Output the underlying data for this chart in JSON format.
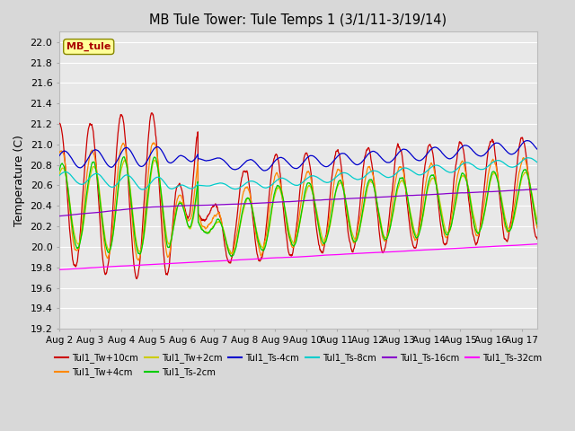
{
  "title": "MB Tule Tower: Tule Temps 1 (3/1/11-3/19/14)",
  "ylabel": "Temperature (C)",
  "ylim": [
    19.2,
    22.1
  ],
  "yticks": [
    19.2,
    19.4,
    19.6,
    19.8,
    20.0,
    20.2,
    20.4,
    20.6,
    20.8,
    21.0,
    21.2,
    21.4,
    21.6,
    21.8,
    22.0
  ],
  "xlim_days": [
    0,
    15.5
  ],
  "x_tick_labels": [
    "Aug 2",
    "Aug 3",
    "Aug 4",
    "Aug 5",
    "Aug 6",
    "Aug 7",
    "Aug 8",
    "Aug 9",
    "Aug 10",
    "Aug 11",
    "Aug 12",
    "Aug 13",
    "Aug 14",
    "Aug 15",
    "Aug 16",
    "Aug 17"
  ],
  "series": [
    {
      "label": "Tul1_Tw+10cm",
      "color": "#cc0000"
    },
    {
      "label": "Tul1_Tw+4cm",
      "color": "#ff8800"
    },
    {
      "label": "Tul1_Tw+2cm",
      "color": "#cccc00"
    },
    {
      "label": "Tul1_Ts-2cm",
      "color": "#00cc00"
    },
    {
      "label": "Tul1_Ts-4cm",
      "color": "#0000cc"
    },
    {
      "label": "Tul1_Ts-8cm",
      "color": "#00cccc"
    },
    {
      "label": "Tul1_Ts-16cm",
      "color": "#8800cc"
    },
    {
      "label": "Tul1_Ts-32cm",
      "color": "#ff00ff"
    }
  ],
  "legend_text": "MB_tule",
  "legend_text_color": "#aa0000",
  "bg_color": "#d8d8d8",
  "plot_bg_color": "#e8e8e8",
  "grid_color": "#ffffff"
}
